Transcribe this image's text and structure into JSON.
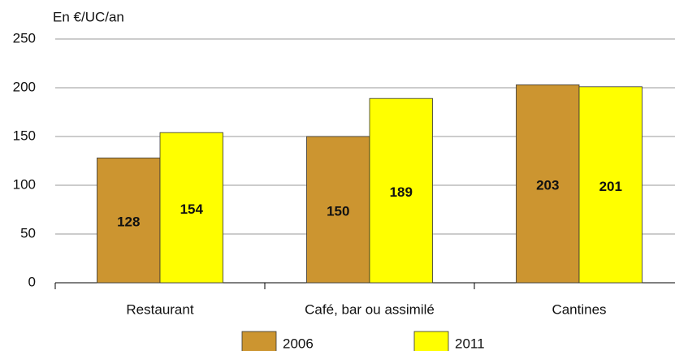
{
  "chart_data": {
    "type": "bar",
    "y_label": "En €/UC/an",
    "categories": [
      "Restaurant",
      "Café, bar ou assimilé",
      "Cantines"
    ],
    "series": [
      {
        "name": "2006",
        "color": "#cc9530",
        "values": [
          128,
          150,
          203
        ]
      },
      {
        "name": "2011",
        "color": "#ffff00",
        "values": [
          154,
          189,
          201
        ]
      }
    ],
    "ylim": [
      0,
      250
    ],
    "yticks": [
      0,
      50,
      100,
      150,
      200,
      250
    ],
    "grid": true,
    "legend": "bottom"
  }
}
